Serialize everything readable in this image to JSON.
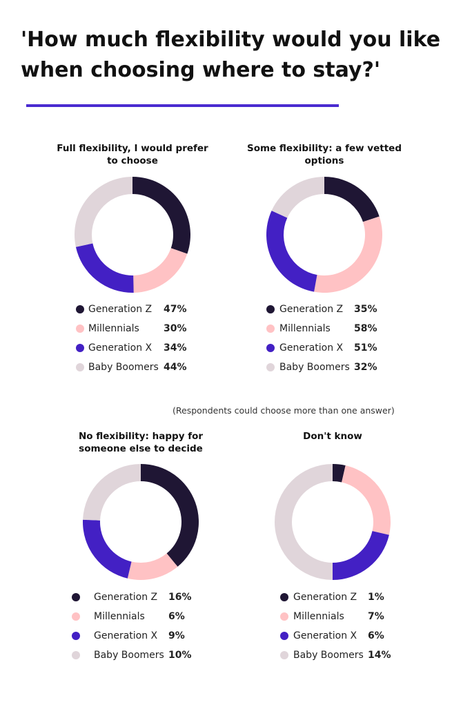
{
  "title": "'How much flexibility would you like when choosing where to stay?'",
  "note": "(Respondents could choose more than one answer)",
  "chart_data": [
    {
      "type": "donut",
      "title": "Full flexibility, I would prefer to choose",
      "categories": [
        "Generation Z",
        "Millennials",
        "Generation X",
        "Baby Boomers"
      ],
      "values": [
        47,
        30,
        34,
        44
      ],
      "value_labels": [
        "47%",
        "30%",
        "34%",
        "44%"
      ],
      "colors": [
        "#1f1634",
        "#ffc2c4",
        "#4320c4",
        "#e0d5da"
      ]
    },
    {
      "type": "donut",
      "title": "Some flexibility: a few vetted options",
      "categories": [
        "Generation Z",
        "Millennials",
        "Generation X",
        "Baby Boomers"
      ],
      "values": [
        35,
        58,
        51,
        32
      ],
      "value_labels": [
        "35%",
        "58%",
        "51%",
        "32%"
      ],
      "colors": [
        "#1f1634",
        "#ffc2c4",
        "#4320c4",
        "#e0d5da"
      ]
    },
    {
      "type": "donut",
      "title": "No flexibility: happy for someone else to decide",
      "categories": [
        "Generation Z",
        "Millennials",
        "Generation X",
        "Baby Boomers"
      ],
      "values": [
        16,
        6,
        9,
        10
      ],
      "value_labels": [
        "16%",
        "6%",
        "9%",
        "10%"
      ],
      "colors": [
        "#1f1634",
        "#ffc2c4",
        "#4320c4",
        "#e0d5da"
      ]
    },
    {
      "type": "donut",
      "title": "Don't know",
      "categories": [
        "Generation Z",
        "Millennials",
        "Generation X",
        "Baby Boomers"
      ],
      "values": [
        1,
        7,
        6,
        14
      ],
      "value_labels": [
        "1%",
        "7%",
        "6%",
        "14%"
      ],
      "colors": [
        "#1f1634",
        "#ffc2c4",
        "#4320c4",
        "#e0d5da"
      ]
    }
  ]
}
